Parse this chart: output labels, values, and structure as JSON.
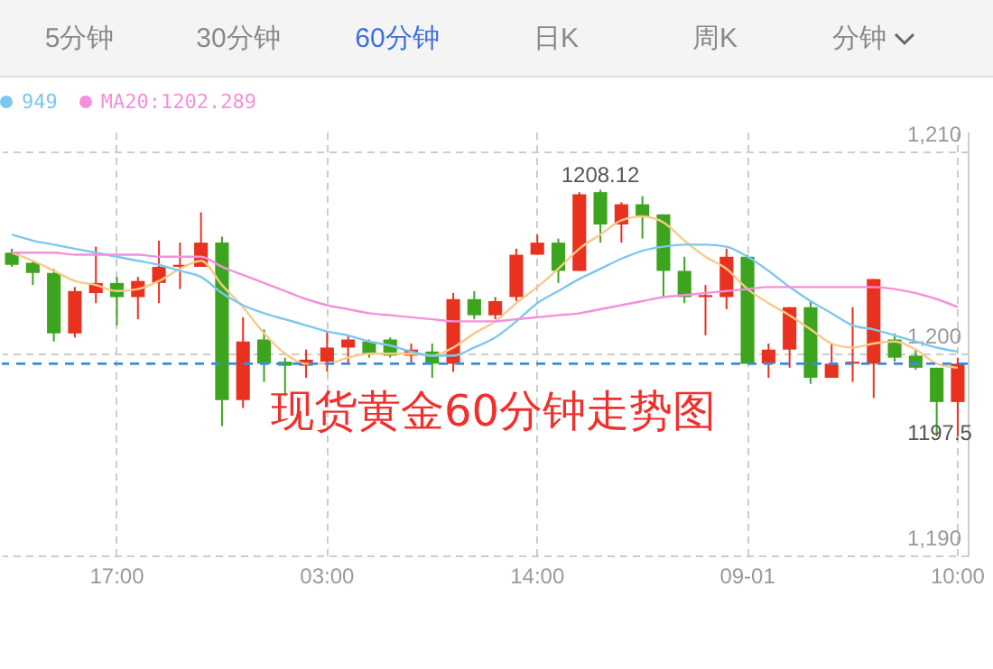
{
  "chart_data": {
    "type": "candlestick",
    "categories": [
      null,
      null,
      null,
      null,
      null,
      "17:00",
      null,
      null,
      null,
      null,
      null,
      null,
      null,
      null,
      null,
      "03:00",
      null,
      null,
      null,
      null,
      null,
      null,
      null,
      null,
      null,
      "14:00",
      null,
      null,
      null,
      null,
      null,
      null,
      null,
      null,
      null,
      "09-01",
      null,
      null,
      null,
      null,
      null,
      null,
      null,
      null,
      null,
      "10:00"
    ],
    "ohlc": [
      [
        1205.0,
        1205.2,
        1204.3,
        1204.4
      ],
      [
        1204.5,
        1204.6,
        1203.4,
        1204.0
      ],
      [
        1204.0,
        1204.2,
        1200.6,
        1201.0
      ],
      [
        1201.0,
        1203.3,
        1200.8,
        1203.1
      ],
      [
        1203.0,
        1205.3,
        1202.5,
        1203.5
      ],
      [
        1203.5,
        1203.8,
        1201.4,
        1202.8
      ],
      [
        1202.8,
        1203.8,
        1201.7,
        1203.6
      ],
      [
        1203.5,
        1205.6,
        1202.5,
        1204.3
      ],
      [
        1204.3,
        1205.5,
        1203.2,
        1204.4
      ],
      [
        1204.3,
        1207.0,
        1204.3,
        1205.5
      ],
      [
        1205.5,
        1205.8,
        1196.4,
        1197.7
      ],
      [
        1197.7,
        1201.8,
        1197.3,
        1200.6
      ],
      [
        1200.7,
        1201.2,
        1198.6,
        1199.5
      ],
      [
        1199.6,
        1199.8,
        1197.9,
        1199.4
      ],
      [
        1199.4,
        1200.2,
        1198.8,
        1199.7
      ],
      [
        1199.6,
        1201.1,
        1199.1,
        1200.3
      ],
      [
        1200.3,
        1200.9,
        1199.5,
        1200.7
      ],
      [
        1200.6,
        1200.7,
        1199.8,
        1200.0
      ],
      [
        1200.7,
        1200.8,
        1199.8,
        1199.9
      ],
      [
        1199.9,
        1200.5,
        1199.5,
        1200.2
      ],
      [
        1200.1,
        1200.5,
        1198.8,
        1199.5
      ],
      [
        1199.5,
        1203.0,
        1199.1,
        1202.7
      ],
      [
        1202.7,
        1203.1,
        1201.7,
        1201.9
      ],
      [
        1201.9,
        1202.8,
        1201.7,
        1202.6
      ],
      [
        1202.8,
        1205.2,
        1202.6,
        1204.9
      ],
      [
        1204.9,
        1205.9,
        1204.9,
        1205.5
      ],
      [
        1205.5,
        1205.7,
        1203.5,
        1204.1
      ],
      [
        1204.1,
        1208.0,
        1204.1,
        1207.9
      ],
      [
        1208.0,
        1208.12,
        1205.5,
        1206.4
      ],
      [
        1206.4,
        1207.5,
        1205.5,
        1207.4
      ],
      [
        1207.4,
        1207.8,
        1205.7,
        1206.8
      ],
      [
        1206.9,
        1206.9,
        1202.8,
        1204.1
      ],
      [
        1204.1,
        1204.8,
        1202.5,
        1202.8
      ],
      [
        1202.8,
        1203.4,
        1200.9,
        1202.9
      ],
      [
        1202.8,
        1205.2,
        1202.2,
        1204.8
      ],
      [
        1204.8,
        1204.9,
        1199.5,
        1199.5
      ],
      [
        1199.5,
        1200.5,
        1198.8,
        1200.2
      ],
      [
        1200.2,
        1202.3,
        1199.3,
        1202.3
      ],
      [
        1202.3,
        1202.6,
        1198.5,
        1198.8
      ],
      [
        1198.8,
        1200.5,
        1198.8,
        1199.5
      ],
      [
        1199.5,
        1202.3,
        1198.6,
        1199.6
      ],
      [
        1199.5,
        1203.7,
        1197.8,
        1203.7
      ],
      [
        1200.7,
        1201.0,
        1199.6,
        1199.8
      ],
      [
        1199.9,
        1200.2,
        1199.2,
        1199.3
      ],
      [
        1199.3,
        1199.3,
        1195.9,
        1197.6
      ],
      [
        1197.6,
        1199.8,
        1195.9,
        1199.5
      ]
    ],
    "colors": [
      "#3ca51d",
      "#3ca51d",
      "#3ca51d",
      "#e8321f",
      "#e8321f",
      "#3ca51d",
      "#e8321f",
      "#e8321f",
      "#e8321f",
      "#e8321f",
      "#3ca51d",
      "#e8321f",
      "#3ca51d",
      "#3ca51d",
      "#e8321f",
      "#e8321f",
      "#e8321f",
      "#3ca51d",
      "#3ca51d",
      "#e8321f",
      "#3ca51d",
      "#e8321f",
      "#3ca51d",
      "#e8321f",
      "#e8321f",
      "#e8321f",
      "#3ca51d",
      "#e8321f",
      "#3ca51d",
      "#e8321f",
      "#3ca51d",
      "#3ca51d",
      "#3ca51d",
      "#e8321f",
      "#e8321f",
      "#3ca51d",
      "#e8321f",
      "#e8321f",
      "#3ca51d",
      "#e8321f",
      "#e8321f",
      "#e8321f",
      "#3ca51d",
      "#3ca51d",
      "#3ca51d",
      "#e8321f"
    ],
    "series": [
      {
        "type": "line",
        "color": "#f8c98a",
        "values": [
          1205.0,
          1204.6,
          1204.1,
          1203.6,
          1203.4,
          1203.1,
          1203.2,
          1203.6,
          1204.2,
          1204.6,
          1203.4,
          1202.3,
          1201.0,
          1200.0,
          1199.5,
          1199.5,
          1199.8,
          1200.0,
          1200.0,
          1200.0,
          1199.9,
          1200.3,
          1201.0,
          1201.6,
          1202.5,
          1203.3,
          1204.2,
          1205.2,
          1205.9,
          1206.6,
          1206.8,
          1206.5,
          1205.6,
          1204.8,
          1204.2,
          1203.2,
          1202.5,
          1201.9,
          1201.2,
          1200.5,
          1200.3,
          1200.5,
          1200.6,
          1200.2,
          1199.5,
          1199.3
        ]
      },
      {
        "type": "line",
        "name": "949",
        "color": "#7cc7f0",
        "values": [
          1205.9,
          1205.6,
          1205.4,
          1205.2,
          1205.0,
          1204.8,
          1204.6,
          1204.4,
          1204.1,
          1203.8,
          1203.0,
          1202.4,
          1202.0,
          1201.7,
          1201.4,
          1201.1,
          1200.9,
          1200.6,
          1200.4,
          1200.1,
          1199.9,
          1199.9,
          1200.3,
          1200.8,
          1201.6,
          1202.5,
          1203.1,
          1203.7,
          1204.2,
          1204.7,
          1205.1,
          1205.3,
          1205.4,
          1205.4,
          1205.3,
          1204.8,
          1204.1,
          1203.3,
          1202.6,
          1202.0,
          1201.4,
          1201.2,
          1200.9,
          1200.6,
          1200.3,
          1200.1
        ]
      },
      {
        "type": "line",
        "name": "MA20:1202.289",
        "color": "#f490dc",
        "values": [
          1205.0,
          1205.0,
          1205.0,
          1204.9,
          1204.9,
          1204.9,
          1204.9,
          1204.8,
          1204.8,
          1204.8,
          1204.3,
          1203.9,
          1203.5,
          1203.1,
          1202.7,
          1202.4,
          1202.2,
          1202.0,
          1201.9,
          1201.8,
          1201.7,
          1201.6,
          1201.6,
          1201.6,
          1201.7,
          1201.8,
          1201.9,
          1202.0,
          1202.2,
          1202.4,
          1202.6,
          1202.8,
          1202.9,
          1203.0,
          1203.1,
          1203.2,
          1203.3,
          1203.3,
          1203.3,
          1203.3,
          1203.3,
          1203.3,
          1203.2,
          1203.0,
          1202.7,
          1202.3
        ]
      }
    ],
    "ylim": [
      1190,
      1211
    ],
    "yticks": [
      {
        "value": 1190,
        "label": "1,190"
      },
      {
        "value": 1200,
        "label": "1,200"
      },
      {
        "value": 1210,
        "label": "1,210"
      }
    ],
    "ref_lines": [
      {
        "axis": "y",
        "value": 1199.5,
        "color": "#3b8de0",
        "line_style": "dashed"
      }
    ],
    "annotations": [
      "现货黄金60分钟走势图",
      "5分钟",
      "30分钟",
      "60分钟",
      "日K",
      "周K",
      "分钟",
      {
        "text": "1208.12",
        "y": 1208.12
      },
      {
        "text": "1197.5",
        "y": 1197.5
      }
    ],
    "grid": true,
    "legend": "top left",
    "line_style": "solid",
    "marker": "none"
  }
}
